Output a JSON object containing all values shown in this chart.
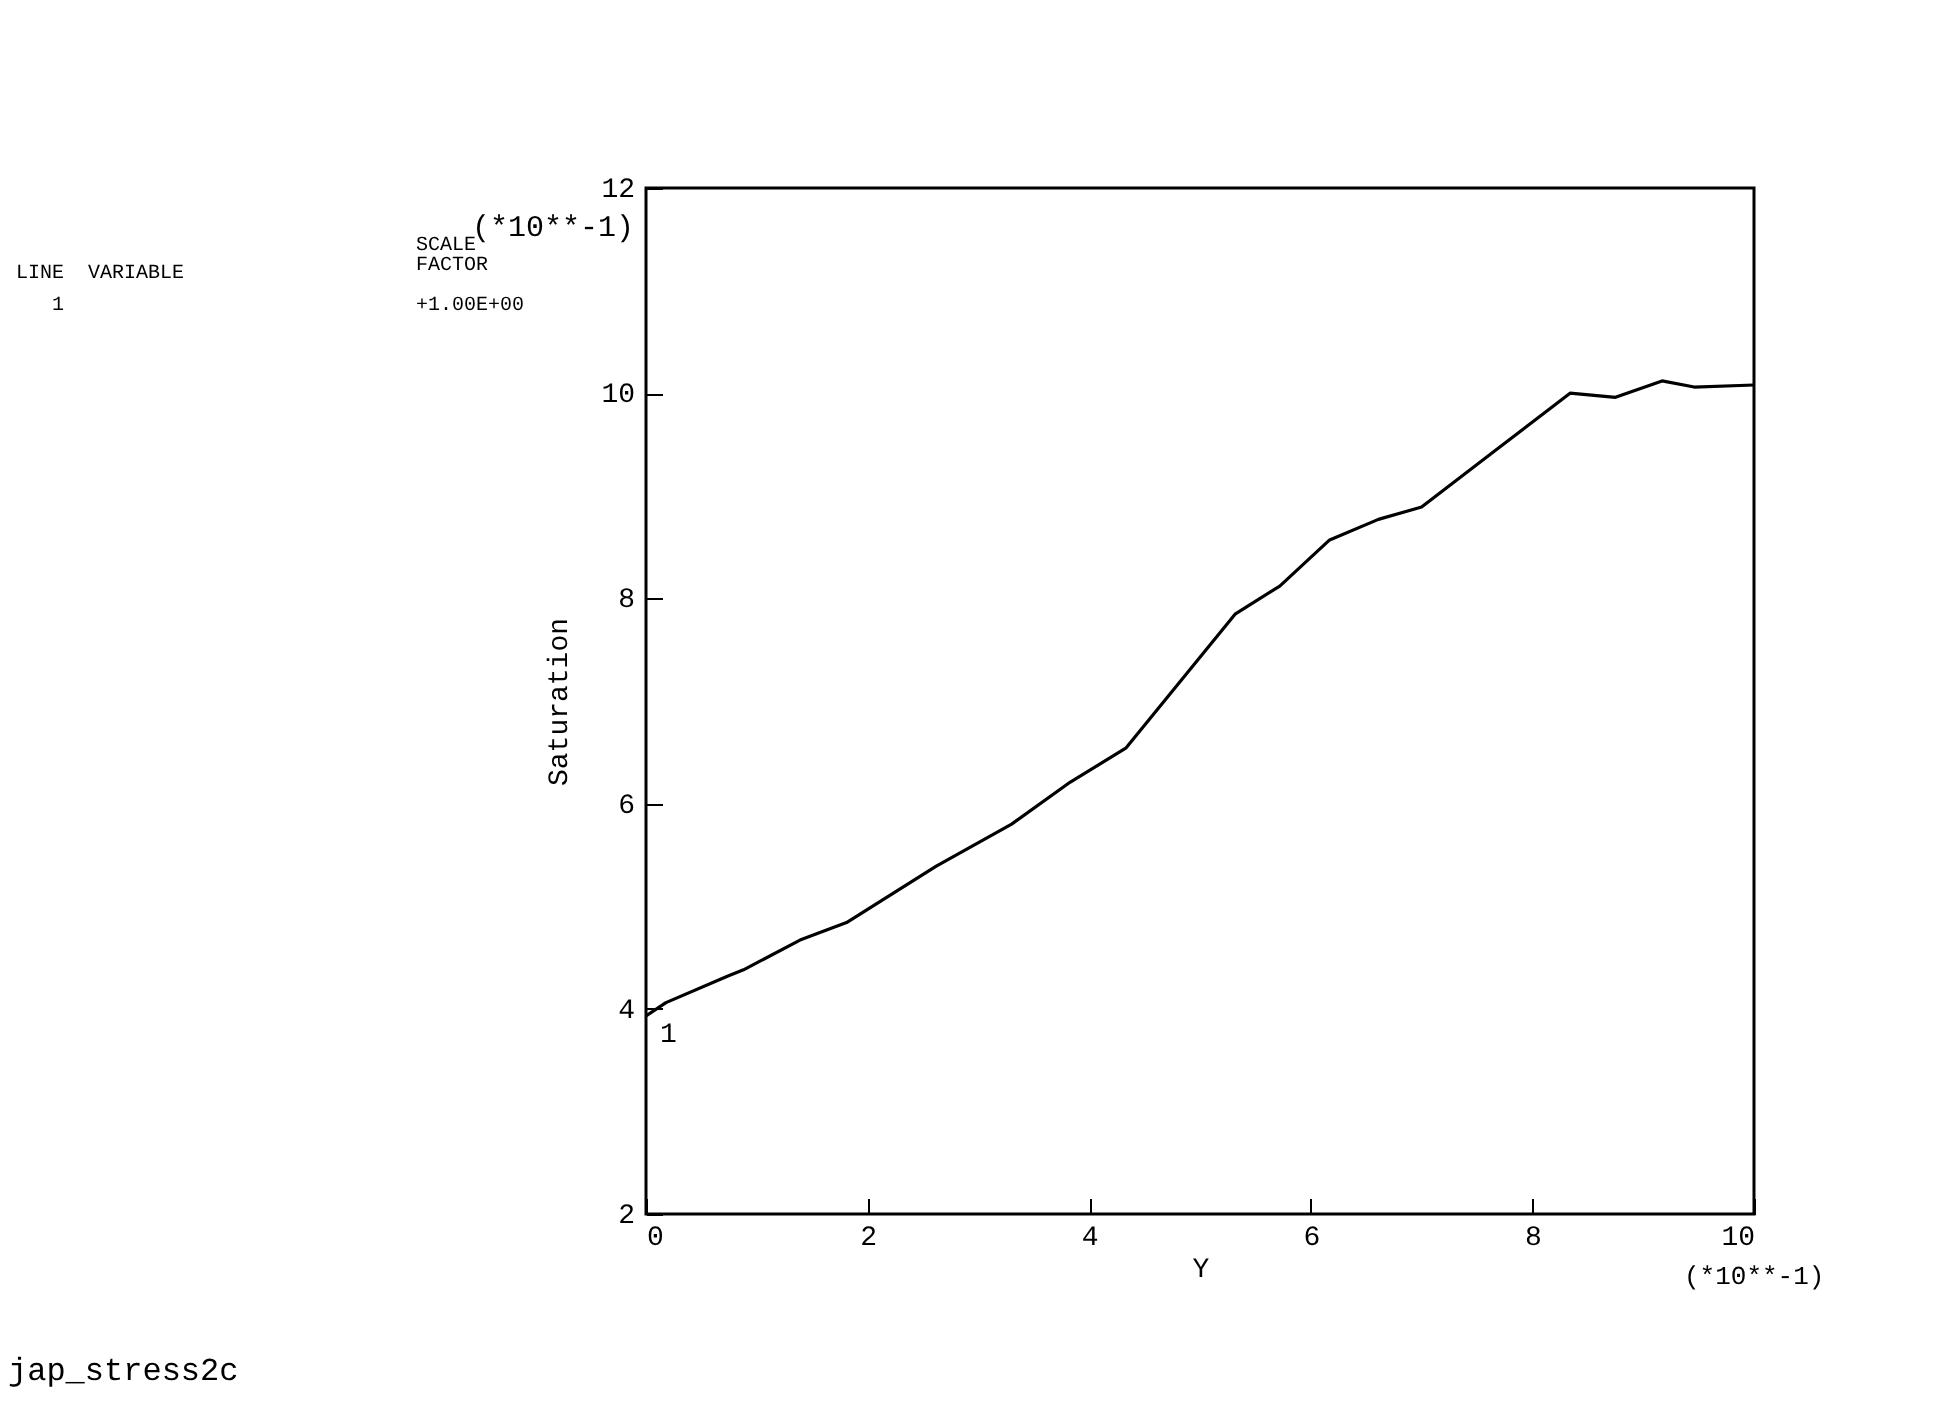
{
  "chart_data": {
    "type": "line",
    "xlabel": "Y",
    "ylabel": "Saturation",
    "series": [
      {
        "name": "1",
        "color": "#000000",
        "x": [
          0,
          0.18,
          0.74,
          0.88,
          1.39,
          1.81,
          2.62,
          3.3,
          3.83,
          4.33,
          5.32,
          5.72,
          6.17,
          6.61,
          7.0,
          7.65,
          8.34,
          8.75,
          9.17,
          9.46,
          10.0
        ],
        "values": [
          3.93,
          4.06,
          4.32,
          4.38,
          4.67,
          4.84,
          5.39,
          5.8,
          6.21,
          6.54,
          7.85,
          8.12,
          8.57,
          8.77,
          8.89,
          9.43,
          10.0,
          9.96,
          10.12,
          10.06,
          10.08
        ]
      }
    ],
    "xlim": [
      0,
      10
    ],
    "xticks": [
      0,
      2,
      4,
      6,
      8,
      10
    ],
    "ylim": [
      2,
      12
    ],
    "yticks": [
      2,
      4,
      6,
      8,
      10,
      12
    ],
    "grid": false,
    "legend": false,
    "marker": "none",
    "line_style": "solid",
    "annotations": [
      "LINE  VARIABLE",
      "SCALE\nFACTOR",
      "1",
      "+1.00E+00",
      "(*10**-1)",
      "(*10**-1)",
      "jap_stress2c"
    ]
  }
}
